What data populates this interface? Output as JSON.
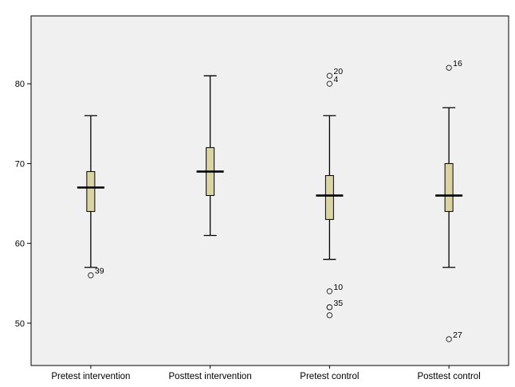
{
  "chart_data": {
    "type": "boxplot",
    "categories": [
      "Pretest intervention",
      "Posttest intervention",
      "Pretest control",
      "Posttest control"
    ],
    "y_ticks": [
      50,
      60,
      70,
      80
    ],
    "ylim": [
      44.7,
      88.5
    ],
    "grid": false,
    "colors": {
      "plot_background": "#f0f0f0",
      "box_fill": "#d9d4a2",
      "stroke": "#000000",
      "frame": "#000000"
    },
    "boxes": [
      {
        "category": "Pretest intervention",
        "whisker_low": 57,
        "q1": 64,
        "median": 67,
        "q3": 69,
        "whisker_high": 76,
        "outliers": [
          {
            "value": 56,
            "label": "39"
          }
        ]
      },
      {
        "category": "Posttest intervention",
        "whisker_low": 61,
        "q1": 66,
        "median": 69,
        "q3": 72,
        "whisker_high": 81,
        "outliers": []
      },
      {
        "category": "Pretest control",
        "whisker_low": 58,
        "q1": 63,
        "median": 66,
        "q3": 68.5,
        "whisker_high": 76,
        "outliers": [
          {
            "value": 81,
            "label": "20"
          },
          {
            "value": 80,
            "label": "4"
          },
          {
            "value": 54,
            "label": "10"
          },
          {
            "value": 52,
            "label": "35"
          },
          {
            "value": 52,
            "label": ""
          },
          {
            "value": 51,
            "label": ""
          }
        ]
      },
      {
        "category": "Posttest control",
        "whisker_low": 57,
        "q1": 64,
        "median": 66,
        "q3": 70,
        "whisker_high": 77,
        "outliers": [
          {
            "value": 82,
            "label": "16"
          },
          {
            "value": 48,
            "label": "27"
          }
        ]
      }
    ]
  }
}
